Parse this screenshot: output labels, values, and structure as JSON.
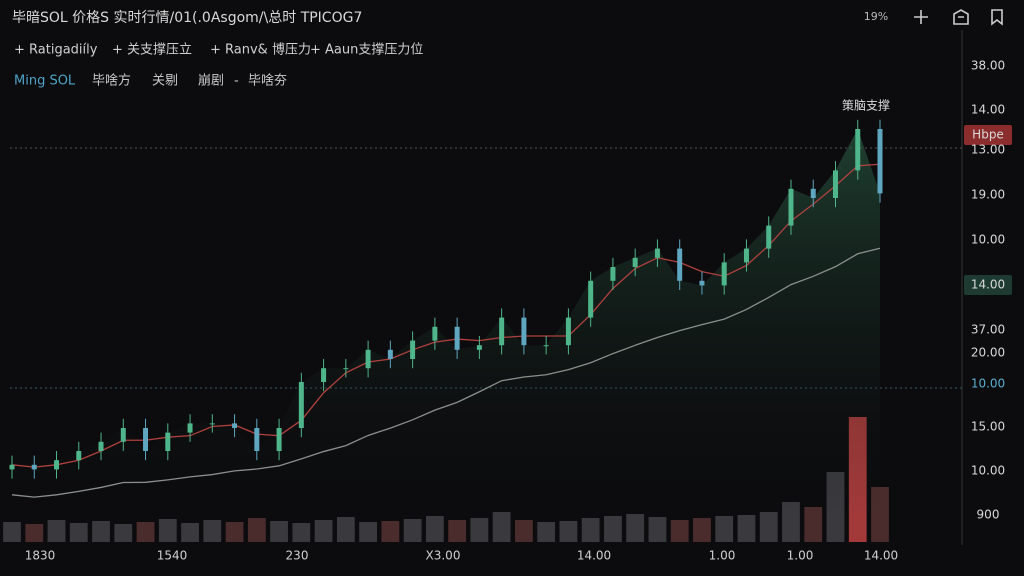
{
  "header": {
    "title": "毕暗SOL 价格S 实时行情/01(.0Asgom/\\总时 TPICOG7",
    "status": "19%"
  },
  "toolbar": [
    "+ Ratigadiíly",
    "+ 关支撑压立",
    "+ Ranv& 博压力",
    "+ Aaun支撑压力位"
  ],
  "legend": [
    "Ming SOL",
    "毕啥方",
    "关剔",
    "崩剧",
    "-",
    "毕啥夯"
  ],
  "annotation": "策脑支撑",
  "y_axis_labels": [
    "38.00",
    "14.00",
    "Hbpe",
    "13.00",
    "19.00",
    "10.00",
    "14.00",
    "37.00",
    "20.00",
    "10.00",
    "15.00",
    "10.00",
    "900"
  ],
  "x_axis_labels": [
    "1830",
    "1540",
    "230",
    "X3.00",
    "14.00",
    "1.00",
    "1.00",
    "14.00"
  ],
  "chart_data": {
    "type": "candlestick",
    "closes": [
      12,
      11,
      13,
      15,
      17,
      20,
      15,
      19,
      21,
      21,
      20,
      15,
      20,
      30,
      33,
      33,
      37,
      35,
      39,
      42,
      37,
      38,
      44,
      38,
      38,
      44,
      52,
      55,
      57,
      59,
      52,
      51,
      56,
      59,
      64,
      72,
      70,
      76,
      85,
      71
    ],
    "volumes": [
      20,
      18,
      22,
      19,
      21,
      18,
      20,
      23,
      19,
      22,
      20,
      24,
      21,
      19,
      22,
      25,
      20,
      21,
      23,
      26,
      22,
      24,
      30,
      22,
      20,
      21,
      24,
      26,
      28,
      25,
      22,
      24,
      26,
      27,
      30,
      40,
      35,
      70,
      125,
      55
    ],
    "ylim": [
      0,
      100
    ],
    "vlim": [
      0,
      130
    ]
  }
}
